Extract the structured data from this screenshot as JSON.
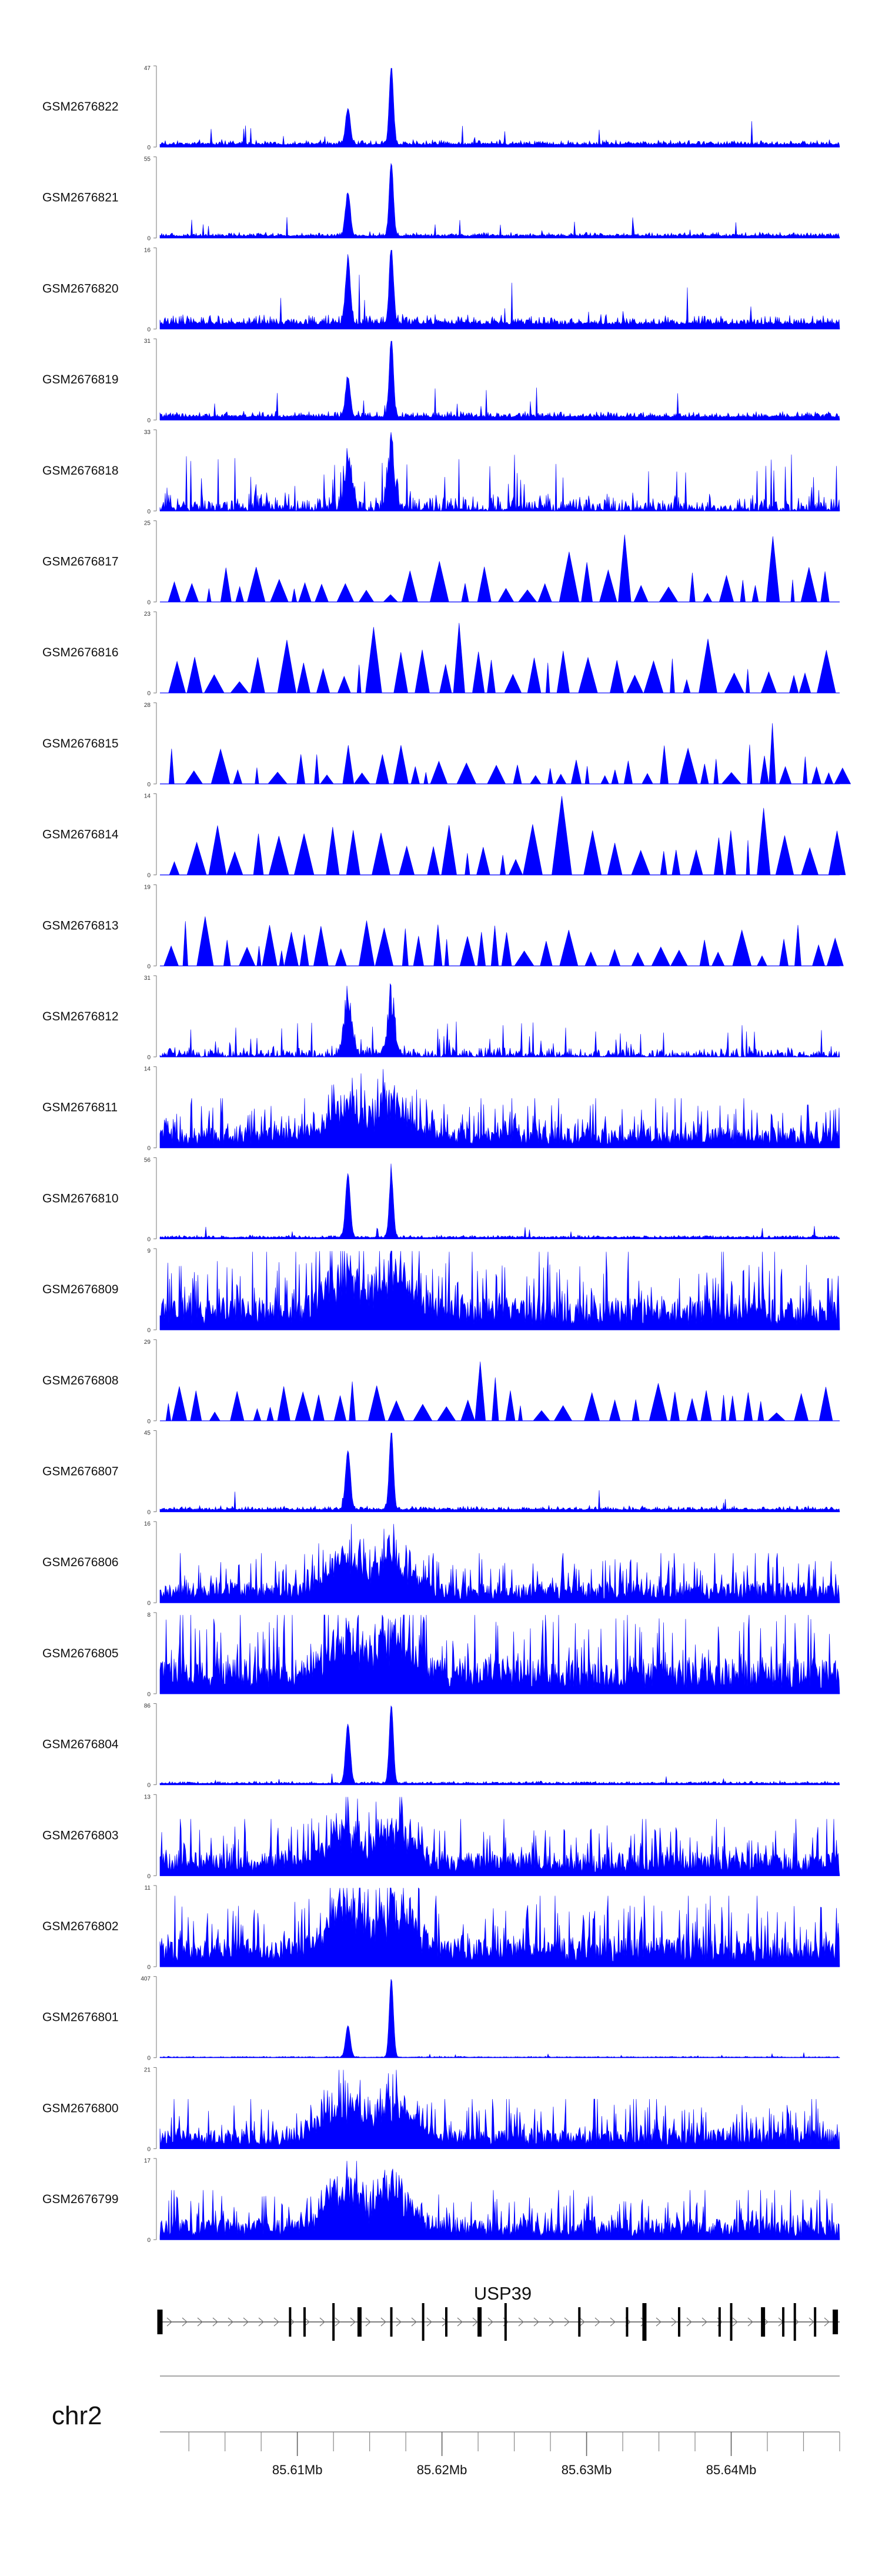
{
  "chart_data": {
    "type": "area",
    "title": "",
    "xlabel": "",
    "ylabel": "",
    "chromosome": "chr2",
    "region_mb": [
      85.6005,
      85.6475
    ],
    "tick_labels": [
      "85.61Mb",
      "85.62Mb",
      "85.63Mb",
      "85.64Mb"
    ],
    "tick_values_mb": [
      85.61,
      85.62,
      85.63,
      85.64
    ],
    "track_color": "#0000ff",
    "peaks_mb": [
      85.6135,
      85.6165
    ],
    "tracks": [
      {
        "name": "GSM2676822",
        "ymax": 47,
        "profile": "sharp",
        "baseline": 0.1,
        "peak_a": 0.45,
        "peak_b": 1.0
      },
      {
        "name": "GSM2676821",
        "ymax": 55,
        "profile": "sharp",
        "baseline": 0.08,
        "peak_a": 0.55,
        "peak_b": 0.92
      },
      {
        "name": "GSM2676820",
        "ymax": 16,
        "profile": "sharp",
        "baseline": 0.2,
        "peak_a": 0.8,
        "peak_b": 0.95
      },
      {
        "name": "GSM2676819",
        "ymax": 31,
        "profile": "sharp",
        "baseline": 0.12,
        "peak_a": 0.5,
        "peak_b": 1.0
      },
      {
        "name": "GSM2676818",
        "ymax": 33,
        "profile": "mixed",
        "baseline": 0.25,
        "peak_a": 0.72,
        "peak_b": 1.0
      },
      {
        "name": "GSM2676817",
        "ymax": 25,
        "profile": "sparse",
        "baseline": 0.45
      },
      {
        "name": "GSM2676816",
        "ymax": 23,
        "profile": "sparse",
        "baseline": 0.55
      },
      {
        "name": "GSM2676815",
        "ymax": 28,
        "profile": "sparse",
        "baseline": 0.5
      },
      {
        "name": "GSM2676814",
        "ymax": 14,
        "profile": "sparse",
        "baseline": 0.65
      },
      {
        "name": "GSM2676813",
        "ymax": 19,
        "profile": "sparse",
        "baseline": 0.6
      },
      {
        "name": "GSM2676812",
        "ymax": 31,
        "profile": "mixed",
        "baseline": 0.15,
        "peak_a": 0.95,
        "peak_b": 0.95
      },
      {
        "name": "GSM2676811",
        "ymax": 14,
        "profile": "dense",
        "baseline": 0.35,
        "peak_a": 0.85,
        "peak_b": 1.0
      },
      {
        "name": "GSM2676810",
        "ymax": 56,
        "profile": "sharp",
        "baseline": 0.05,
        "peak_a": 0.8,
        "peak_b": 0.8
      },
      {
        "name": "GSM2676809",
        "ymax": 9,
        "profile": "dense",
        "baseline": 0.55,
        "peak_a": 0.95,
        "peak_b": 0.9
      },
      {
        "name": "GSM2676808",
        "ymax": 29,
        "profile": "sparse",
        "baseline": 0.5
      },
      {
        "name": "GSM2676807",
        "ymax": 45,
        "profile": "sharp",
        "baseline": 0.08,
        "peak_a": 0.75,
        "peak_b": 1.0
      },
      {
        "name": "GSM2676806",
        "ymax": 16,
        "profile": "dense",
        "baseline": 0.35,
        "peak_a": 0.95,
        "peak_b": 1.0
      },
      {
        "name": "GSM2676805",
        "ymax": 8,
        "profile": "dense",
        "baseline": 0.6,
        "peak_a": 0.95,
        "peak_b": 0.85
      },
      {
        "name": "GSM2676804",
        "ymax": 86,
        "profile": "sharp",
        "baseline": 0.05,
        "peak_a": 0.75,
        "peak_b": 1.0
      },
      {
        "name": "GSM2676803",
        "ymax": 13,
        "profile": "dense",
        "baseline": 0.4,
        "peak_a": 0.85,
        "peak_b": 1.0
      },
      {
        "name": "GSM2676802",
        "ymax": 11,
        "profile": "dense",
        "baseline": 0.5,
        "peak_a": 1.0,
        "peak_b": 0.85
      },
      {
        "name": "GSM2676801",
        "ymax": 407,
        "profile": "sharp",
        "baseline": 0.02,
        "peak_a": 0.4,
        "peak_b": 1.0
      },
      {
        "name": "GSM2676800",
        "ymax": 21,
        "profile": "dense",
        "baseline": 0.35,
        "peak_a": 0.9,
        "peak_b": 1.0
      },
      {
        "name": "GSM2676799",
        "ymax": 17,
        "profile": "dense",
        "baseline": 0.35,
        "peak_a": 0.95,
        "peak_b": 1.0
      }
    ],
    "gene": {
      "name": "USP39",
      "strand": "+",
      "span_mb": [
        85.6005,
        85.6475
      ],
      "exons_mb": [
        85.6005,
        85.6095,
        85.6105,
        85.6125,
        85.6143,
        85.6165,
        85.6187,
        85.6203,
        85.6226,
        85.6244,
        85.6295,
        85.6328,
        85.634,
        85.6364,
        85.6392,
        85.64,
        85.6422,
        85.6436,
        85.6444,
        85.6458,
        85.6472
      ]
    }
  }
}
